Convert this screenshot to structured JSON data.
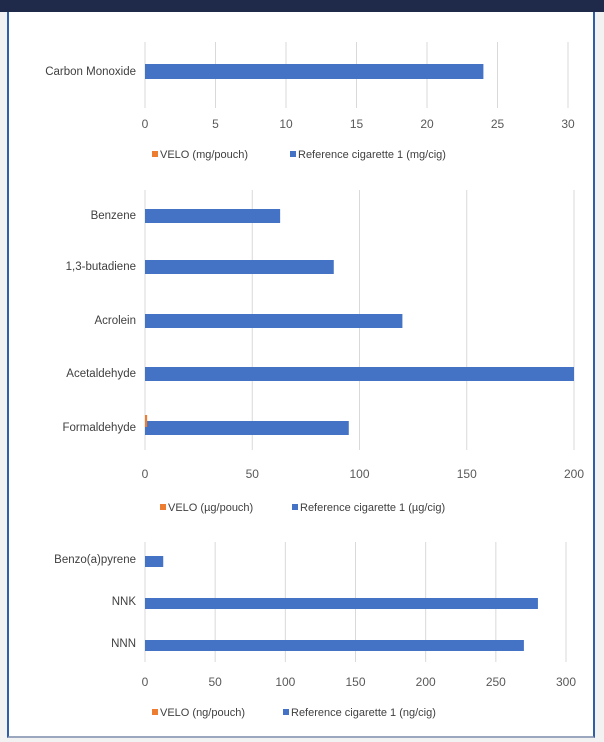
{
  "colors": {
    "velo": "#ed7d31",
    "reference": "#4472c4",
    "grid": "#d9d9d9"
  },
  "chart_data": [
    {
      "type": "bar",
      "orientation": "horizontal",
      "categories": [
        "Carbon Monoxide"
      ],
      "series": [
        {
          "name": "VELO (mg/pouch)",
          "values": [
            0
          ]
        },
        {
          "name": "Reference cigarette 1 (mg/cig)",
          "values": [
            24
          ]
        }
      ],
      "xlim": [
        0,
        30
      ],
      "xticks": [
        0,
        5,
        10,
        15,
        20,
        25,
        30
      ],
      "legend": "bottom",
      "grid": true
    },
    {
      "type": "bar",
      "orientation": "horizontal",
      "categories": [
        "Formaldehyde",
        "Acetaldehyde",
        "Acrolein",
        "1,3-butadiene",
        "Benzene"
      ],
      "series": [
        {
          "name": "VELO (µg/pouch)",
          "values": [
            1,
            0,
            0,
            0,
            0
          ]
        },
        {
          "name": "Reference cigarette 1 (µg/cig)",
          "values": [
            95,
            200,
            120,
            88,
            63
          ]
        }
      ],
      "xlim": [
        0,
        200
      ],
      "xticks": [
        0,
        50,
        100,
        150,
        200
      ],
      "legend": "bottom",
      "grid": true
    },
    {
      "type": "bar",
      "orientation": "horizontal",
      "categories": [
        "NNN",
        "NNK",
        "Benzo(a)pyrene"
      ],
      "series": [
        {
          "name": "VELO (ng/pouch)",
          "values": [
            0,
            0,
            0
          ]
        },
        {
          "name": "Reference cigarette 1 (ng/cig)",
          "values": [
            270,
            280,
            13
          ]
        }
      ],
      "xlim": [
        0,
        300
      ],
      "xticks": [
        0,
        50,
        100,
        150,
        200,
        250,
        300
      ],
      "legend": "bottom",
      "grid": true
    }
  ]
}
